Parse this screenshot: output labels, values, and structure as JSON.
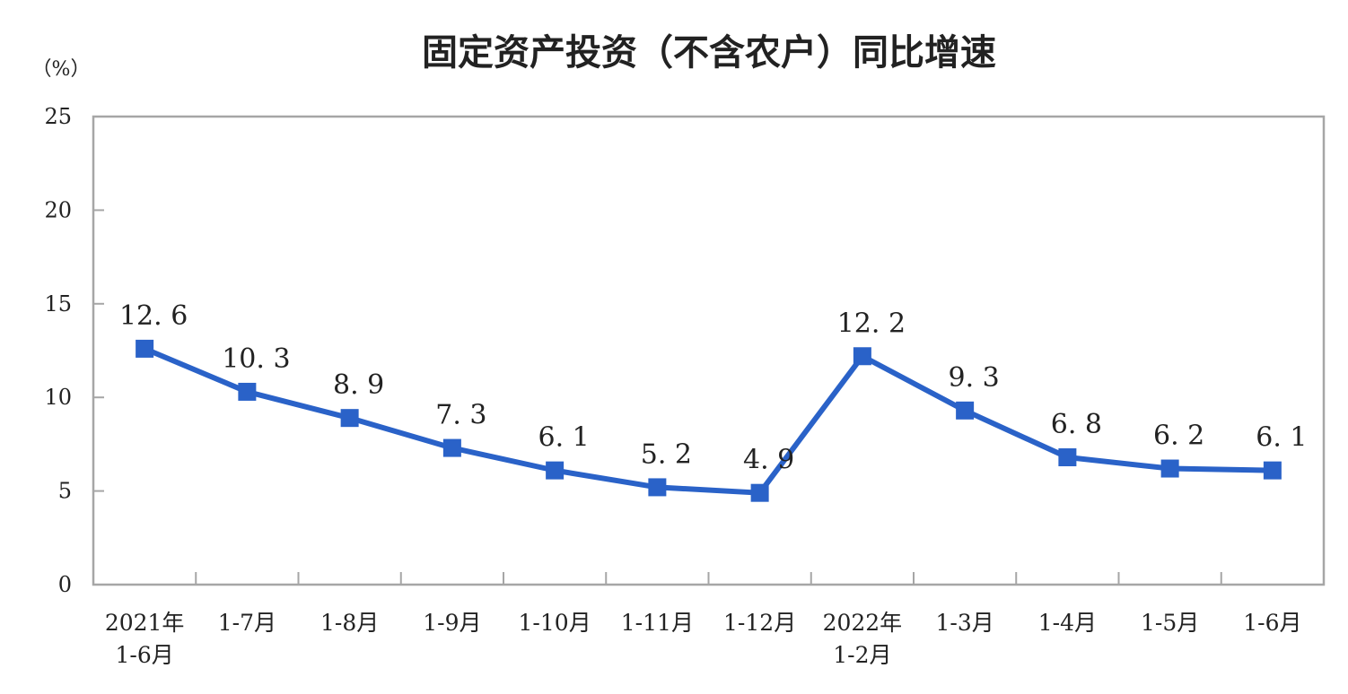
{
  "chart_data": {
    "type": "line",
    "title": "固定资产投资（不含农户）同比增速",
    "ylabel": "（%）",
    "xlabel": "",
    "ylim": [
      0,
      25
    ],
    "yticks": [
      0,
      5,
      10,
      15,
      20,
      25
    ],
    "grid": false,
    "legend": null,
    "categories": [
      [
        "2021年",
        "1-6月"
      ],
      [
        "1-7月"
      ],
      [
        "1-8月"
      ],
      [
        "1-9月"
      ],
      [
        "1-10月"
      ],
      [
        "1-11月"
      ],
      [
        "1-12月"
      ],
      [
        "2022年",
        "1-2月"
      ],
      [
        "1-3月"
      ],
      [
        "1-4月"
      ],
      [
        "1-5月"
      ],
      [
        "1-6月"
      ]
    ],
    "series": [
      {
        "name": "固定资产投资（不含农户）同比增速",
        "values": [
          12.6,
          10.3,
          8.9,
          7.3,
          6.1,
          5.2,
          4.9,
          12.2,
          9.3,
          6.8,
          6.2,
          6.1
        ],
        "labels": [
          "12. 6",
          "10. 3",
          "8. 9",
          "7. 3",
          "6. 1",
          "5. 2",
          "4. 9",
          "12. 2",
          "9. 3",
          "6. 8",
          "6. 2",
          "6. 1"
        ],
        "color": "#2a62c8",
        "marker": "square"
      }
    ]
  },
  "colors": {
    "line": "#2a62c8",
    "axis": "#a6a6a6",
    "text": "#222222"
  }
}
